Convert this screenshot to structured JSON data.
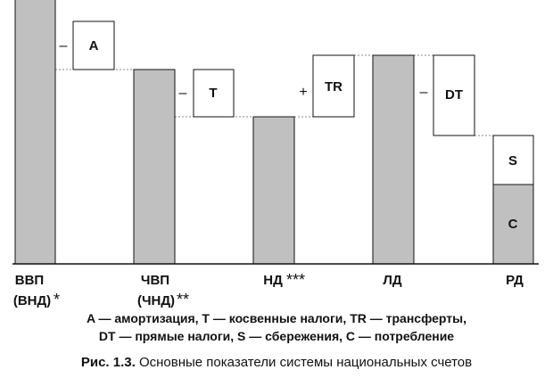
{
  "diagram": {
    "categories": [
      {
        "id": "vvp",
        "label_line1": "ВВП",
        "label_line2": "(ВНД)",
        "mark": "*"
      },
      {
        "id": "chvp",
        "label_line1": "ЧВП",
        "label_line2": "(ЧНД)",
        "mark": "**"
      },
      {
        "id": "nd",
        "label_line1": "НД",
        "label_line2": "",
        "mark": "***"
      },
      {
        "id": "ld",
        "label_line1": "ЛД",
        "label_line2": "",
        "mark": ""
      },
      {
        "id": "rd",
        "label_line1": "РД",
        "label_line2": "",
        "mark": ""
      }
    ],
    "boxes": {
      "A": "A",
      "T": "T",
      "TR": "TR",
      "DT": "DT",
      "S": "S",
      "C": "C"
    },
    "operators": {
      "minus_a": "–",
      "minus_t": "–",
      "plus_tr": "+",
      "minus_dt": "–"
    }
  },
  "legend": {
    "line1": "A — амортизация, T — косвенные налоги, TR — трансферты,",
    "line2": "DT — прямые налоги, S — сбережения, C — потребление"
  },
  "caption": {
    "prefix": "Рис. 1.3.",
    "text": " Основные показатели системы национальных счетов"
  },
  "colors": {
    "bar_fill": "#c0c0c0",
    "box_fill": "#ffffff",
    "line": "#111111"
  }
}
